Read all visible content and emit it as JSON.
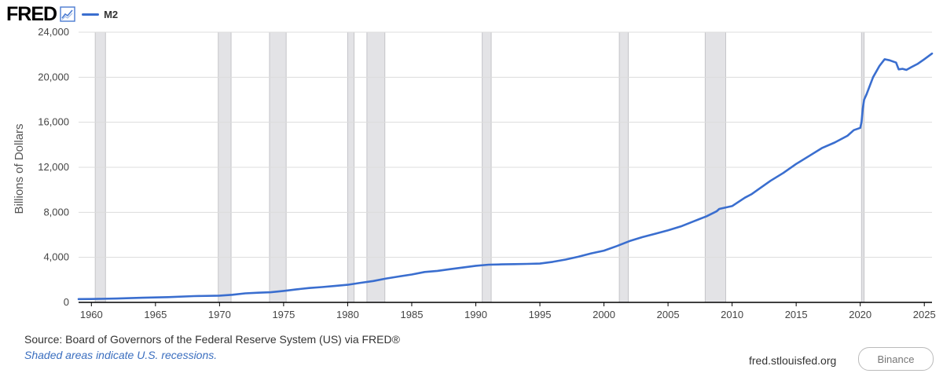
{
  "header": {
    "logo_text": "FRED",
    "legend_label": "M2"
  },
  "footer": {
    "source": "Source: Board of Governors of the Federal Reserve System (US) via FRED®",
    "recession_note": "Shaded areas indicate U.S. recessions.",
    "site": "fred.stlouisfed.org",
    "watermark": "Binance"
  },
  "colors": {
    "series": "#3a6ecf",
    "recession_fill": "#e3e3e6",
    "recession_stroke": "#c4c4c8",
    "axis": "#000000",
    "grid": "#dcdcdc"
  },
  "icons": {
    "logo_graph": "line-chart-icon"
  },
  "chart_data": {
    "type": "line",
    "title": "",
    "xlabel": "",
    "ylabel": "Billions of Dollars",
    "xlim": [
      1959.0,
      2025.6
    ],
    "ylim": [
      0,
      24000
    ],
    "grid": true,
    "legend": "top-left",
    "x_ticks": [
      1960,
      1965,
      1970,
      1975,
      1980,
      1985,
      1990,
      1995,
      2000,
      2005,
      2010,
      2015,
      2020,
      2025
    ],
    "x_tick_labels": [
      "1960",
      "1965",
      "1970",
      "1975",
      "1980",
      "1985",
      "1990",
      "1995",
      "2000",
      "2005",
      "2010",
      "2015",
      "2020",
      "2025"
    ],
    "y_ticks": [
      0,
      4000,
      8000,
      12000,
      16000,
      20000,
      24000
    ],
    "y_tick_labels": [
      "0",
      "4,000",
      "8,000",
      "12,000",
      "16,000",
      "20,000",
      "24,000"
    ],
    "recessions": [
      [
        1960.3,
        1961.1
      ],
      [
        1969.9,
        1970.9
      ],
      [
        1973.9,
        1975.2
      ],
      [
        1980.0,
        1980.5
      ],
      [
        1981.5,
        1982.9
      ],
      [
        1990.5,
        1991.2
      ],
      [
        2001.2,
        2001.9
      ],
      [
        2007.9,
        2009.5
      ],
      [
        2020.1,
        2020.3
      ]
    ],
    "series": [
      {
        "name": "M2",
        "x": [
          1959.0,
          1960.0,
          1962.0,
          1964.0,
          1966.0,
          1968.0,
          1970.0,
          1971.0,
          1972.0,
          1973.0,
          1974.0,
          1975.0,
          1976.0,
          1977.0,
          1978.0,
          1979.0,
          1980.0,
          1981.0,
          1982.0,
          1983.0,
          1984.0,
          1985.0,
          1986.0,
          1987.0,
          1988.0,
          1989.0,
          1990.0,
          1991.0,
          1992.0,
          1993.0,
          1994.0,
          1995.0,
          1996.0,
          1997.0,
          1998.0,
          1999.0,
          2000.0,
          2001.0,
          2002.0,
          2003.0,
          2004.0,
          2005.0,
          2006.0,
          2007.0,
          2008.0,
          2008.8,
          2009.0,
          2010.0,
          2011.0,
          2011.5,
          2012.0,
          2013.0,
          2014.0,
          2015.0,
          2016.0,
          2017.0,
          2018.0,
          2019.0,
          2019.5,
          2020.0,
          2020.1,
          2020.2,
          2020.3,
          2020.5,
          2021.0,
          2021.5,
          2021.9,
          2022.3,
          2022.8,
          2023.0,
          2023.3,
          2023.6,
          2024.0,
          2024.5,
          2025.0,
          2025.6
        ],
        "values": [
          290,
          300,
          340,
          410,
          470,
          560,
          600,
          680,
          800,
          860,
          900,
          1020,
          1160,
          1280,
          1360,
          1460,
          1560,
          1740,
          1900,
          2120,
          2300,
          2480,
          2700,
          2800,
          2950,
          3100,
          3250,
          3350,
          3380,
          3400,
          3420,
          3450,
          3600,
          3800,
          4050,
          4350,
          4600,
          5000,
          5450,
          5800,
          6100,
          6400,
          6750,
          7200,
          7650,
          8100,
          8300,
          8550,
          9300,
          9600,
          10000,
          10800,
          11500,
          12300,
          13000,
          13700,
          14200,
          14800,
          15300,
          15500,
          16000,
          17200,
          18000,
          18500,
          20000,
          21000,
          21600,
          21500,
          21300,
          20700,
          20750,
          20650,
          20900,
          21200,
          21600,
          22100
        ]
      }
    ]
  }
}
